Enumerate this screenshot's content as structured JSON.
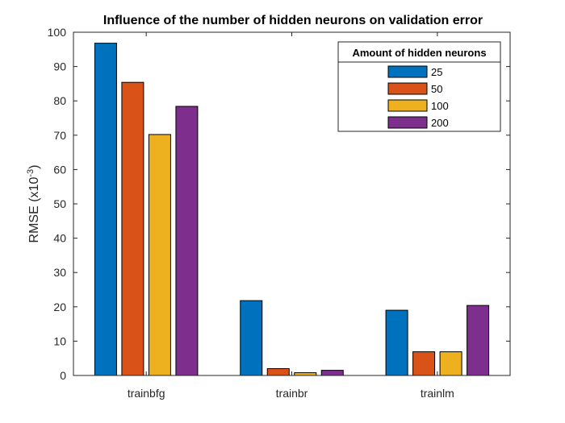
{
  "chart_data": {
    "type": "bar",
    "title": "Influence of the number of hidden neurons on validation error",
    "ylabel": "RMSE (x10",
    "ylabel_exponent": "-3",
    "ylabel_suffix": ")",
    "xlabel": "",
    "ylim": [
      0,
      100
    ],
    "yticks": [
      0,
      10,
      20,
      30,
      40,
      50,
      60,
      70,
      80,
      90,
      100
    ],
    "categories": [
      "trainbfg",
      "trainbr",
      "trainlm"
    ],
    "series": [
      {
        "name": "25",
        "color": "#0072BD",
        "values": [
          96.8,
          21.8,
          19.0
        ]
      },
      {
        "name": "50",
        "color": "#D95319",
        "values": [
          85.4,
          2.0,
          6.9
        ]
      },
      {
        "name": "100",
        "color": "#EDB120",
        "values": [
          70.2,
          0.8,
          6.9
        ]
      },
      {
        "name": "200",
        "color": "#7E2F8E",
        "values": [
          78.4,
          1.5,
          20.4
        ]
      }
    ],
    "legend": {
      "title": "Amount of hidden neurons",
      "location": "top-right"
    },
    "grid": false
  }
}
